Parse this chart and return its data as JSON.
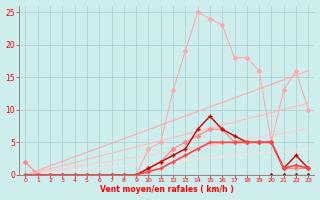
{
  "xlabel": "Vent moyen/en rafales ( km/h )",
  "xlim": [
    -0.5,
    23.5
  ],
  "ylim": [
    0,
    26
  ],
  "xticks": [
    0,
    1,
    2,
    3,
    4,
    5,
    6,
    7,
    8,
    9,
    10,
    11,
    12,
    13,
    14,
    15,
    16,
    17,
    18,
    19,
    20,
    21,
    22,
    23
  ],
  "yticks": [
    0,
    5,
    10,
    15,
    20,
    25
  ],
  "background_color": "#ceeeed",
  "grid_color": "#aacccc",
  "lines": [
    {
      "x": [
        0,
        23
      ],
      "y": [
        0,
        16
      ],
      "color": "#ffaaaa",
      "lw": 0.8,
      "marker": null,
      "ms": 0
    },
    {
      "x": [
        0,
        23
      ],
      "y": [
        0,
        11
      ],
      "color": "#ffbbbb",
      "lw": 0.8,
      "marker": null,
      "ms": 0
    },
    {
      "x": [
        0,
        23
      ],
      "y": [
        0,
        7
      ],
      "color": "#ffcccc",
      "lw": 0.8,
      "marker": null,
      "ms": 0
    },
    {
      "x": [
        0,
        23
      ],
      "y": [
        0,
        4
      ],
      "color": "#ffdddd",
      "lw": 0.8,
      "marker": null,
      "ms": 0
    },
    {
      "x": [
        0,
        1,
        2,
        3,
        4,
        5,
        6,
        7,
        8,
        9,
        10,
        11,
        12,
        13,
        14,
        15,
        16,
        17,
        18,
        19,
        20,
        21,
        22,
        23
      ],
      "y": [
        0,
        0,
        0,
        0,
        0,
        0,
        0,
        0,
        0,
        0,
        4,
        5,
        13,
        19,
        25,
        24,
        23,
        18,
        18,
        16,
        5,
        13,
        16,
        10
      ],
      "color": "#ffaaaa",
      "lw": 0.8,
      "marker": "D",
      "ms": 2
    },
    {
      "x": [
        0,
        1,
        2,
        3,
        4,
        5,
        6,
        7,
        8,
        9,
        10,
        11,
        12,
        13,
        14,
        15,
        16,
        17,
        18,
        19,
        20,
        21,
        22,
        23
      ],
      "y": [
        2,
        0,
        0,
        0,
        0,
        0,
        0,
        0,
        0,
        0,
        1,
        2,
        4,
        5,
        6,
        7,
        7,
        5,
        5,
        5,
        5,
        1,
        1,
        1
      ],
      "color": "#ff8888",
      "lw": 0.9,
      "marker": "D",
      "ms": 2
    },
    {
      "x": [
        0,
        1,
        2,
        3,
        4,
        5,
        6,
        7,
        8,
        9,
        10,
        11,
        12,
        13,
        14,
        15,
        16,
        17,
        18,
        19,
        20,
        21,
        22,
        23
      ],
      "y": [
        0,
        0,
        0,
        0,
        0,
        0,
        0,
        0,
        0,
        0,
        1,
        2,
        3,
        4,
        7,
        9,
        7,
        6,
        5,
        5,
        5,
        1,
        3,
        1
      ],
      "color": "#cc0000",
      "lw": 1.0,
      "marker": "+",
      "ms": 3
    },
    {
      "x": [
        0,
        1,
        2,
        3,
        4,
        5,
        6,
        7,
        8,
        9,
        10,
        11,
        12,
        13,
        14,
        15,
        16,
        17,
        18,
        19,
        20,
        21,
        22,
        23
      ],
      "y": [
        0,
        0,
        0,
        0,
        0,
        0,
        0,
        0,
        0,
        0,
        0,
        0,
        0,
        0,
        0,
        0,
        0,
        0,
        0,
        0,
        0,
        0,
        0,
        0
      ],
      "color": "#ee0000",
      "lw": 0.8,
      "marker": null,
      "ms": 0
    },
    {
      "x": [
        0,
        1,
        2,
        3,
        4,
        5,
        6,
        7,
        8,
        9,
        10,
        11,
        12,
        13,
        14,
        15,
        16,
        17,
        18,
        19,
        20,
        21,
        22,
        23
      ],
      "y": [
        0,
        0,
        0,
        0,
        0,
        0,
        0,
        0,
        0,
        0,
        0.5,
        1,
        2,
        3,
        4,
        5,
        5,
        5,
        5,
        5,
        5,
        1,
        1.5,
        1
      ],
      "color": "#ff4444",
      "lw": 1.2,
      "marker": "+",
      "ms": 3
    },
    {
      "x": [
        20,
        21,
        22,
        23
      ],
      "y": [
        0,
        0,
        0,
        0
      ],
      "color": "#882222",
      "lw": 0.8,
      "marker": "^",
      "ms": 3
    }
  ]
}
